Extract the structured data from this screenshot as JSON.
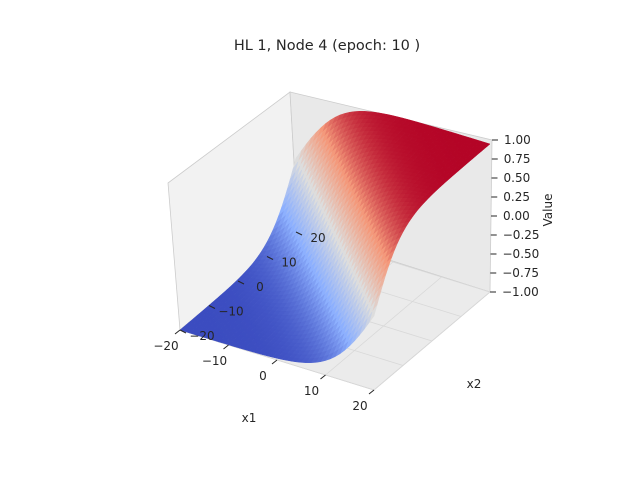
{
  "chart_data": {
    "type": "surface",
    "title": "HL 1, Node 4 (epoch: 10 )",
    "xlabel": "x1",
    "ylabel": "x2",
    "zlabel": "Value",
    "xlim": [
      -20,
      20
    ],
    "ylim": [
      -20,
      20
    ],
    "zlim": [
      -1,
      1
    ],
    "x_ticks": [
      "−20",
      "−10",
      "0",
      "10",
      "20"
    ],
    "y_ticks": [
      "−20",
      "−10",
      "0",
      "10",
      "20"
    ],
    "z_ticks": [
      "−1.00",
      "−0.75",
      "−0.50",
      "−0.25",
      "0.00",
      "0.25",
      "0.50",
      "0.75",
      "1.00"
    ],
    "colormap": "coolwarm",
    "colors": {
      "low": "#3b4cc0",
      "mid": "#dddddd",
      "high": "#b40426"
    },
    "grid": true,
    "surface_description": "tanh-like saturating surface of (x1 + x2), rising from -1 at low x1+x2 to +1 at high x1+x2"
  }
}
